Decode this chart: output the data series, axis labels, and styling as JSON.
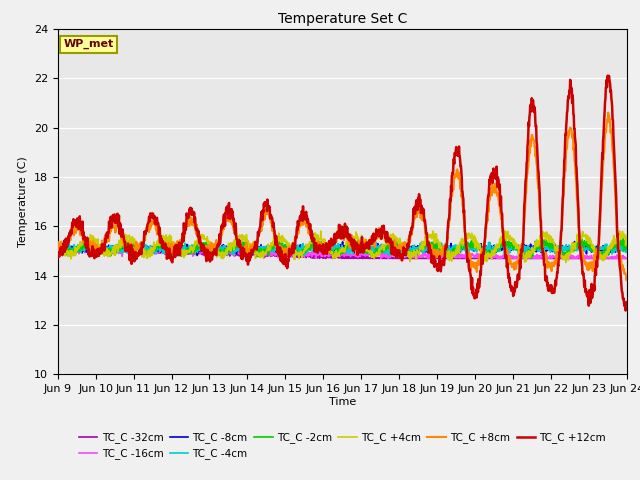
{
  "title": "Temperature Set C",
  "xlabel": "Time",
  "ylabel": "Temperature (C)",
  "ylim": [
    10,
    24
  ],
  "yticks": [
    10,
    12,
    14,
    16,
    18,
    20,
    22,
    24
  ],
  "xlim": [
    0,
    360
  ],
  "background_color": "#e8e8e8",
  "figure_color": "#f0f0f0",
  "wp_met_label": "WP_met",
  "wp_met_color": "#ffff99",
  "wp_met_border": "#999900",
  "series_order": [
    "TC_C -32cm",
    "TC_C -16cm",
    "TC_C -8cm",
    "TC_C -4cm",
    "TC_C -2cm",
    "TC_C +4cm",
    "TC_C +8cm",
    "TC_C +12cm"
  ],
  "series": {
    "TC_C -32cm": {
      "color": "#aa00aa",
      "lw": 1.2
    },
    "TC_C -16cm": {
      "color": "#ff44ff",
      "lw": 1.2
    },
    "TC_C -8cm": {
      "color": "#0000cc",
      "lw": 1.2
    },
    "TC_C -4cm": {
      "color": "#00cccc",
      "lw": 1.2
    },
    "TC_C -2cm": {
      "color": "#00cc00",
      "lw": 1.2
    },
    "TC_C +4cm": {
      "color": "#cccc00",
      "lw": 1.2
    },
    "TC_C +8cm": {
      "color": "#ff8800",
      "lw": 1.5
    },
    "TC_C +12cm": {
      "color": "#cc0000",
      "lw": 1.8
    }
  },
  "xtick_labels": [
    "Jun 9",
    "Jun 10",
    "Jun 11",
    "Jun 12",
    "Jun 13",
    "Jun 14",
    "Jun 15",
    "Jun 16",
    "Jun 17",
    "Jun 18",
    "Jun 19",
    "Jun 20",
    "Jun 21",
    "Jun 22",
    "Jun 23",
    "Jun 24"
  ],
  "xtick_positions": [
    0,
    24,
    48,
    72,
    96,
    120,
    144,
    168,
    192,
    216,
    240,
    264,
    288,
    312,
    336,
    360
  ]
}
